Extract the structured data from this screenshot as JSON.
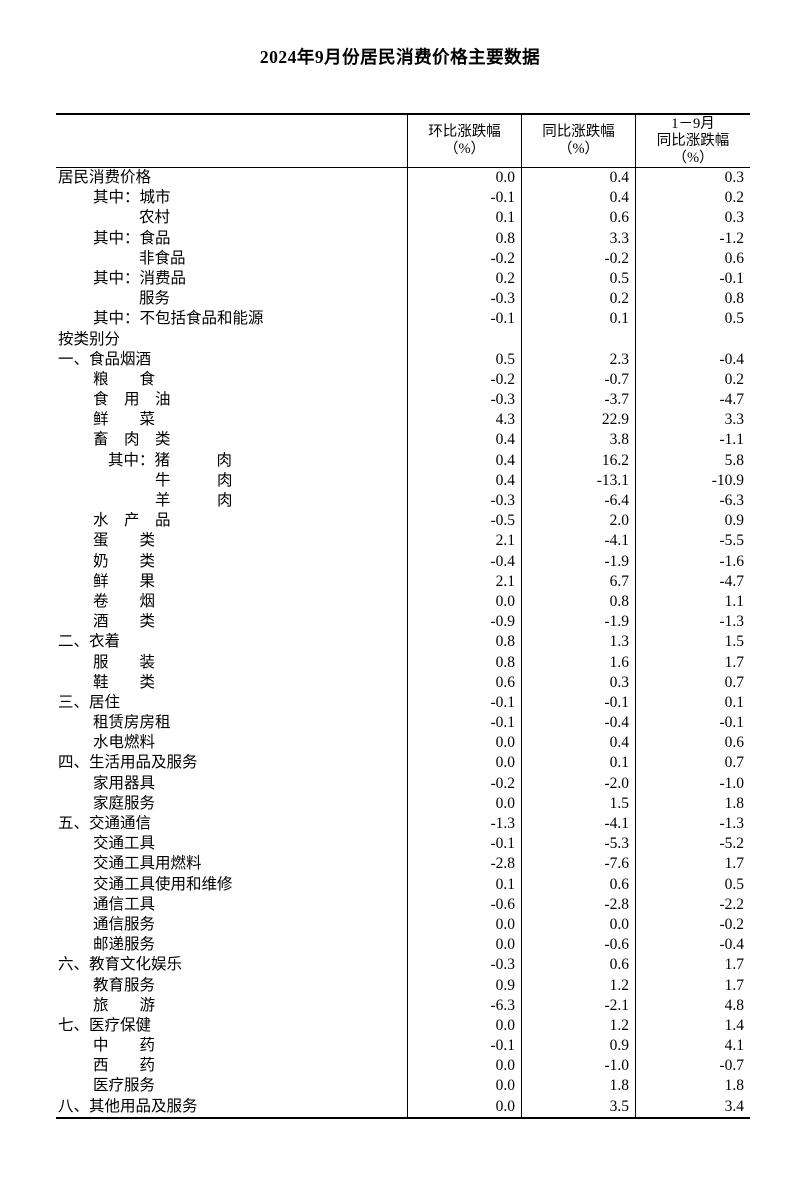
{
  "page": {
    "title": "2024年9月份居民消费价格主要数据"
  },
  "table": {
    "header": {
      "stub": "",
      "mom_line1": "环比涨跌幅",
      "mom_line2": "（%）",
      "yoy_line1": "同比涨跌幅",
      "yoy_line2": "（%）",
      "ytd_line1": "1－9月",
      "ytd_line2": "同比涨跌幅",
      "ytd_line3": "（%）"
    },
    "rows": [
      {
        "label": "居民消费价格",
        "indent": 0,
        "mom": "0.0",
        "yoy": "0.4",
        "ytd": "0.3"
      },
      {
        "label": "其中：城市",
        "indent": 1,
        "mom": "-0.1",
        "yoy": "0.4",
        "ytd": "0.2"
      },
      {
        "label": "农村",
        "indent": 2,
        "mom": "0.1",
        "yoy": "0.6",
        "ytd": "0.3"
      },
      {
        "label": "其中：食品",
        "indent": 1,
        "mom": "0.8",
        "yoy": "3.3",
        "ytd": "-1.2"
      },
      {
        "label": "非食品",
        "indent": 2,
        "mom": "-0.2",
        "yoy": "-0.2",
        "ytd": "0.6"
      },
      {
        "label": "其中：消费品",
        "indent": 1,
        "mom": "0.2",
        "yoy": "0.5",
        "ytd": "-0.1"
      },
      {
        "label": "服务",
        "indent": 2,
        "mom": "-0.3",
        "yoy": "0.2",
        "ytd": "0.8"
      },
      {
        "label": "其中：不包括食品和能源",
        "indent": 1,
        "mom": "-0.1",
        "yoy": "0.1",
        "ytd": "0.5"
      },
      {
        "label": "按类别分",
        "indent": 0,
        "mom": "",
        "yoy": "",
        "ytd": ""
      },
      {
        "label": "一、食品烟酒",
        "indent": 0,
        "mom": "0.5",
        "yoy": "2.3",
        "ytd": "-0.4"
      },
      {
        "label": "粮　　食",
        "indent": 1,
        "mom": "-0.2",
        "yoy": "-0.7",
        "ytd": "0.2"
      },
      {
        "label": "食　用　油",
        "indent": 1,
        "mom": "-0.3",
        "yoy": "-3.7",
        "ytd": "-4.7"
      },
      {
        "label": "鲜　　菜",
        "indent": 1,
        "mom": "4.3",
        "yoy": "22.9",
        "ytd": "3.3"
      },
      {
        "label": "畜　肉　类",
        "indent": 1,
        "mom": "0.4",
        "yoy": "3.8",
        "ytd": "-1.1"
      },
      {
        "label": "其中：猪　　　肉",
        "indent": 3,
        "mom": "0.4",
        "yoy": "16.2",
        "ytd": "5.8"
      },
      {
        "label": "牛　　　肉",
        "indent": 4,
        "mom": "0.4",
        "yoy": "-13.1",
        "ytd": "-10.9"
      },
      {
        "label": "羊　　　肉",
        "indent": 4,
        "mom": "-0.3",
        "yoy": "-6.4",
        "ytd": "-6.3"
      },
      {
        "label": "水　产　品",
        "indent": 1,
        "mom": "-0.5",
        "yoy": "2.0",
        "ytd": "0.9"
      },
      {
        "label": "蛋　　类",
        "indent": 1,
        "mom": "2.1",
        "yoy": "-4.1",
        "ytd": "-5.5"
      },
      {
        "label": "奶　　类",
        "indent": 1,
        "mom": "-0.4",
        "yoy": "-1.9",
        "ytd": "-1.6"
      },
      {
        "label": "鲜　　果",
        "indent": 1,
        "mom": "2.1",
        "yoy": "6.7",
        "ytd": "-4.7"
      },
      {
        "label": "卷　　烟",
        "indent": 1,
        "mom": "0.0",
        "yoy": "0.8",
        "ytd": "1.1"
      },
      {
        "label": "酒　　类",
        "indent": 1,
        "mom": "-0.9",
        "yoy": "-1.9",
        "ytd": "-1.3"
      },
      {
        "label": "二、衣着",
        "indent": 0,
        "mom": "0.8",
        "yoy": "1.3",
        "ytd": "1.5"
      },
      {
        "label": "服　　装",
        "indent": 1,
        "mom": "0.8",
        "yoy": "1.6",
        "ytd": "1.7"
      },
      {
        "label": "鞋　　类",
        "indent": 1,
        "mom": "0.6",
        "yoy": "0.3",
        "ytd": "0.7"
      },
      {
        "label": "三、居住",
        "indent": 0,
        "mom": "-0.1",
        "yoy": "-0.1",
        "ytd": "0.1"
      },
      {
        "label": "租赁房房租",
        "indent": 1,
        "mom": "-0.1",
        "yoy": "-0.4",
        "ytd": "-0.1"
      },
      {
        "label": "水电燃料",
        "indent": 1,
        "mom": "0.0",
        "yoy": "0.4",
        "ytd": "0.6"
      },
      {
        "label": "四、生活用品及服务",
        "indent": 0,
        "mom": "0.0",
        "yoy": "0.1",
        "ytd": "0.7"
      },
      {
        "label": "家用器具",
        "indent": 1,
        "mom": "-0.2",
        "yoy": "-2.0",
        "ytd": "-1.0"
      },
      {
        "label": "家庭服务",
        "indent": 1,
        "mom": "0.0",
        "yoy": "1.5",
        "ytd": "1.8"
      },
      {
        "label": "五、交通通信",
        "indent": 0,
        "mom": "-1.3",
        "yoy": "-4.1",
        "ytd": "-1.3"
      },
      {
        "label": "交通工具",
        "indent": 1,
        "mom": "-0.1",
        "yoy": "-5.3",
        "ytd": "-5.2"
      },
      {
        "label": "交通工具用燃料",
        "indent": 1,
        "mom": "-2.8",
        "yoy": "-7.6",
        "ytd": "1.7"
      },
      {
        "label": "交通工具使用和维修",
        "indent": 1,
        "mom": "0.1",
        "yoy": "0.6",
        "ytd": "0.5"
      },
      {
        "label": "通信工具",
        "indent": 1,
        "mom": "-0.6",
        "yoy": "-2.8",
        "ytd": "-2.2"
      },
      {
        "label": "通信服务",
        "indent": 1,
        "mom": "0.0",
        "yoy": "0.0",
        "ytd": "-0.2"
      },
      {
        "label": "邮递服务",
        "indent": 1,
        "mom": "0.0",
        "yoy": "-0.6",
        "ytd": "-0.4"
      },
      {
        "label": "六、教育文化娱乐",
        "indent": 0,
        "mom": "-0.3",
        "yoy": "0.6",
        "ytd": "1.7"
      },
      {
        "label": "教育服务",
        "indent": 1,
        "mom": "0.9",
        "yoy": "1.2",
        "ytd": "1.7"
      },
      {
        "label": "旅　　游",
        "indent": 1,
        "mom": "-6.3",
        "yoy": "-2.1",
        "ytd": "4.8"
      },
      {
        "label": "七、医疗保健",
        "indent": 0,
        "mom": "0.0",
        "yoy": "1.2",
        "ytd": "1.4"
      },
      {
        "label": "中　　药",
        "indent": 1,
        "mom": "-0.1",
        "yoy": "0.9",
        "ytd": "4.1"
      },
      {
        "label": "西　　药",
        "indent": 1,
        "mom": "0.0",
        "yoy": "-1.0",
        "ytd": "-0.7"
      },
      {
        "label": "医疗服务",
        "indent": 1,
        "mom": "0.0",
        "yoy": "1.8",
        "ytd": "1.8"
      },
      {
        "label": "八、其他用品及服务",
        "indent": 0,
        "mom": "0.0",
        "yoy": "3.5",
        "ytd": "3.4"
      }
    ]
  }
}
